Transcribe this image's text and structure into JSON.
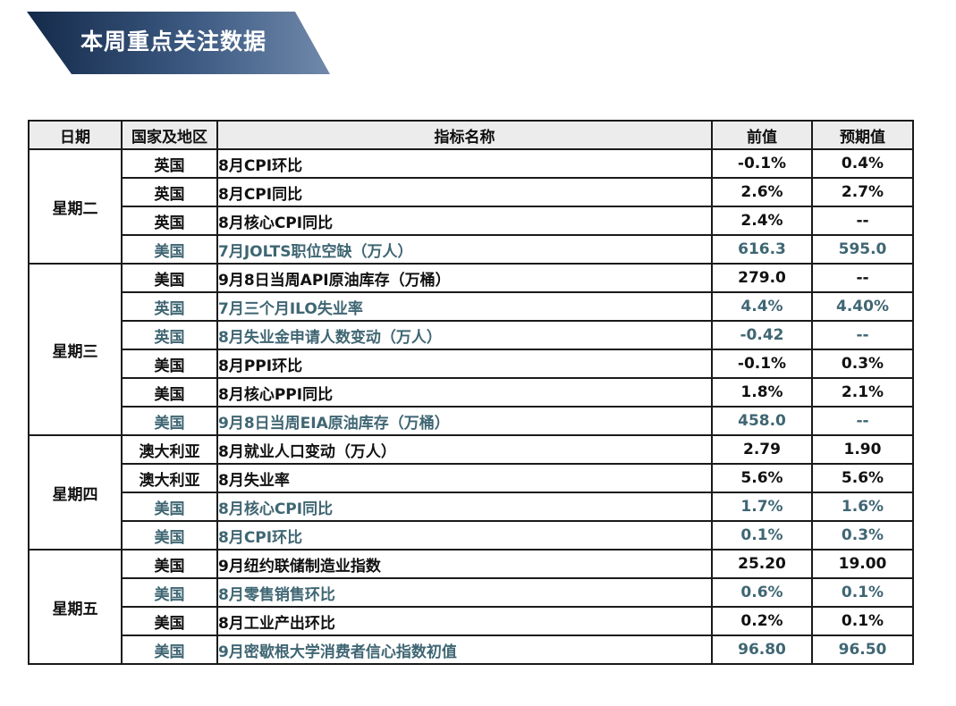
{
  "banner": {
    "title": "本周重点关注数据"
  },
  "table": {
    "headers": {
      "date": "日期",
      "country": "国家及地区",
      "indicator": "指标名称",
      "previous": "前值",
      "expected": "预期值"
    },
    "groups": [
      {
        "day": "星期二",
        "rows": [
          {
            "country": "英国",
            "indicator": "8月CPI环比",
            "previous": "-0.1%",
            "expected": "0.4%",
            "highlight": false
          },
          {
            "country": "英国",
            "indicator": "8月CPI同比",
            "previous": "2.6%",
            "expected": "2.7%",
            "highlight": false
          },
          {
            "country": "英国",
            "indicator": "8月核心CPI同比",
            "previous": "2.4%",
            "expected": "--",
            "highlight": false
          },
          {
            "country": "美国",
            "indicator": "7月JOLTS职位空缺（万人）",
            "previous": "616.3",
            "expected": "595.0",
            "highlight": true
          }
        ]
      },
      {
        "day": "星期三",
        "rows": [
          {
            "country": "美国",
            "indicator": "9月8日当周API原油库存（万桶）",
            "previous": "279.0",
            "expected": "--",
            "highlight": false
          },
          {
            "country": "英国",
            "indicator": "7月三个月ILO失业率",
            "previous": "4.4%",
            "expected": "4.40%",
            "highlight": true
          },
          {
            "country": "英国",
            "indicator": "8月失业金申请人数变动（万人）",
            "previous": "-0.42",
            "expected": "--",
            "highlight": true
          },
          {
            "country": "美国",
            "indicator": "8月PPI环比",
            "previous": "-0.1%",
            "expected": "0.3%",
            "highlight": false
          },
          {
            "country": "美国",
            "indicator": "8月核心PPI同比",
            "previous": "1.8%",
            "expected": "2.1%",
            "highlight": false
          },
          {
            "country": "美国",
            "indicator": "9月8日当周EIA原油库存（万桶）",
            "previous": "458.0",
            "expected": "--",
            "highlight": true
          }
        ]
      },
      {
        "day": "星期四",
        "rows": [
          {
            "country": "澳大利亚",
            "indicator": "8月就业人口变动（万人）",
            "previous": "2.79",
            "expected": "1.90",
            "highlight": false
          },
          {
            "country": "澳大利亚",
            "indicator": "8月失业率",
            "previous": "5.6%",
            "expected": "5.6%",
            "highlight": false
          },
          {
            "country": "美国",
            "indicator": "8月核心CPI同比",
            "previous": "1.7%",
            "expected": "1.6%",
            "highlight": true
          },
          {
            "country": "美国",
            "indicator": "8月CPI环比",
            "previous": "0.1%",
            "expected": "0.3%",
            "highlight": true
          }
        ]
      },
      {
        "day": "星期五",
        "rows": [
          {
            "country": "美国",
            "indicator": "9月纽约联储制造业指数",
            "previous": "25.20",
            "expected": "19.00",
            "highlight": false
          },
          {
            "country": "美国",
            "indicator": "8月零售销售环比",
            "previous": "0.6%",
            "expected": "0.1%",
            "highlight": true
          },
          {
            "country": "美国",
            "indicator": "8月工业产出环比",
            "previous": "0.2%",
            "expected": "0.1%",
            "highlight": false
          },
          {
            "country": "美国",
            "indicator": "9月密歇根大学消费者信心指数初值",
            "previous": "96.80",
            "expected": "96.50",
            "highlight": true
          }
        ]
      }
    ]
  },
  "colors": {
    "banner_dark": "#142a4a",
    "banner_light": "#6f89ab",
    "highlight_text": "#3f6673",
    "header_bg": "#ececec"
  }
}
